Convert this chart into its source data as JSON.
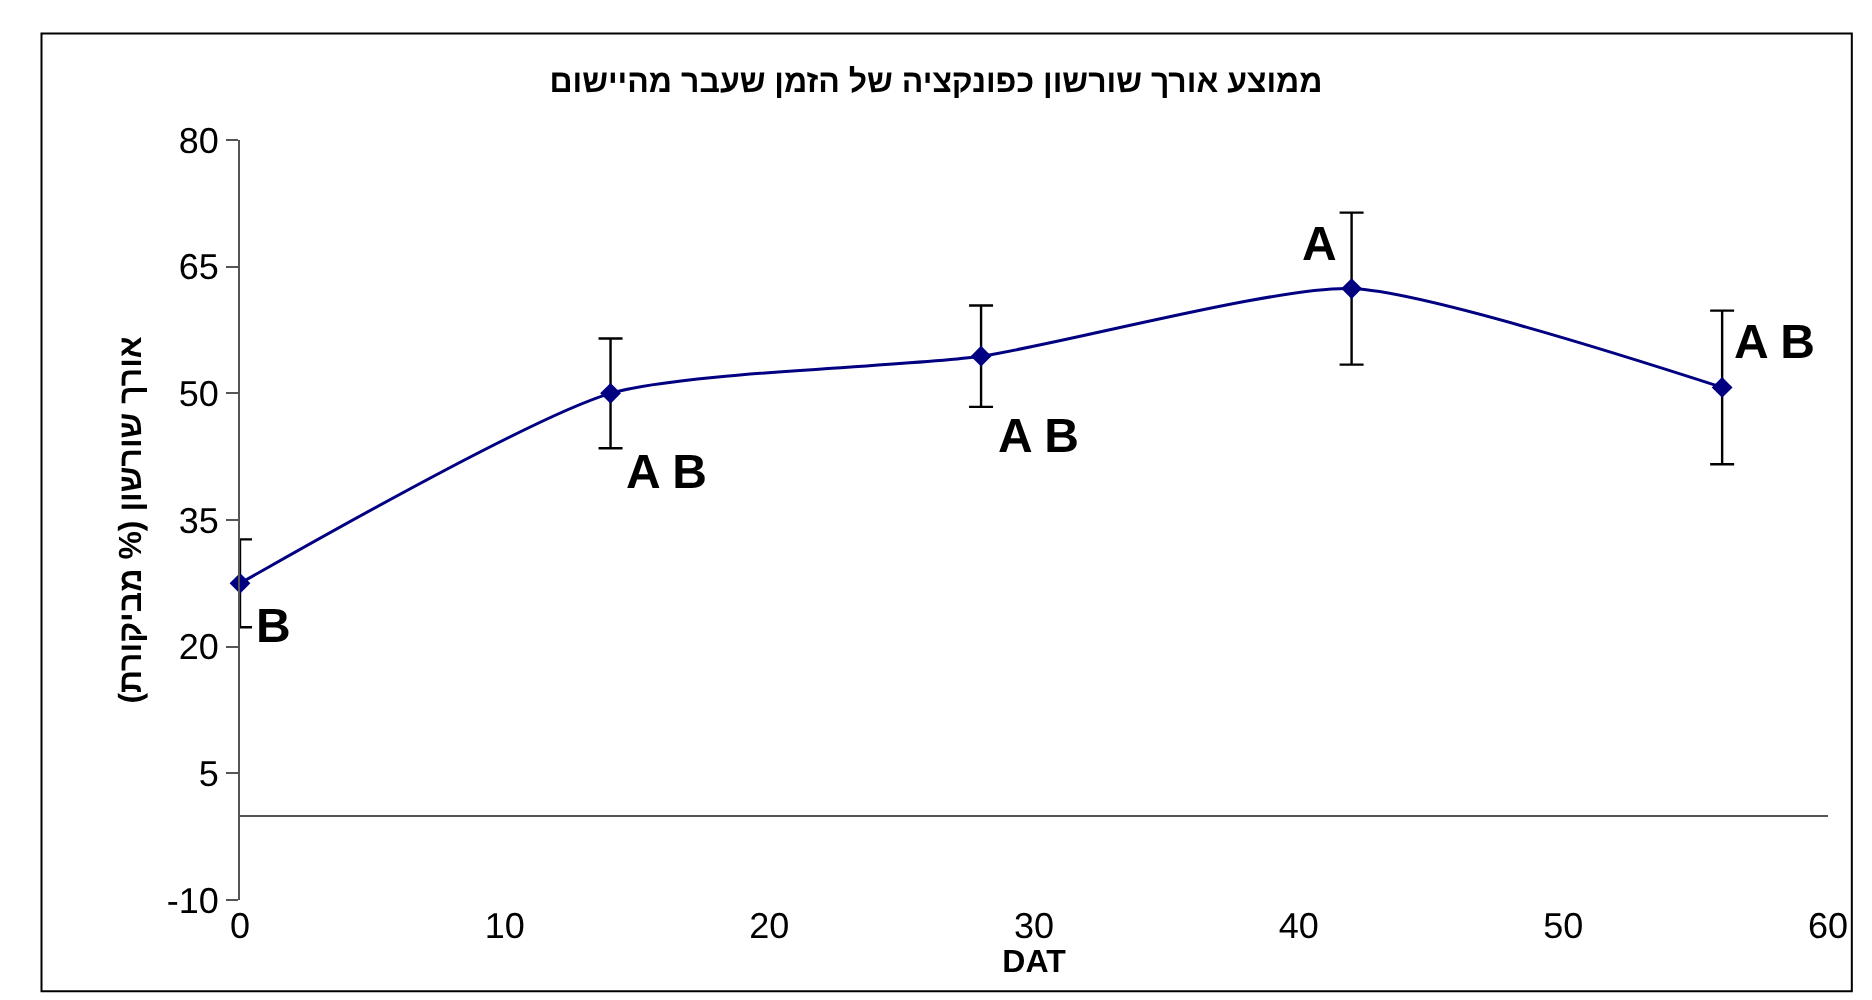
{
  "chart_data": {
    "type": "line",
    "title": "ממוצע אורך שורשון כפונקציה של הזמן שעבר מהיישום",
    "xlabel": "DAT",
    "ylabel": "אורך שורשון (% מביקורת)",
    "x": [
      0,
      14,
      28,
      42,
      56
    ],
    "series": [
      {
        "color": "#000080",
        "values": [
          27.5,
          50,
          54.4,
          62.4,
          50.7
        ],
        "errors": [
          5.2,
          6.5,
          6,
          9,
          9.1
        ]
      }
    ],
    "xlim": [
      0,
      60
    ],
    "xticks": [
      0,
      10,
      20,
      30,
      40,
      50,
      60
    ],
    "ylim": [
      -10,
      80
    ],
    "yticks": [
      -10,
      5,
      20,
      35,
      50,
      65,
      80
    ],
    "annotations": [
      {
        "text": "B",
        "x": 0,
        "y": 27.5
      },
      {
        "text": "A B",
        "x": 14,
        "y": 50
      },
      {
        "text": "A B",
        "x": 28,
        "y": 54.4
      },
      {
        "text": "A",
        "x": 42,
        "y": 62.4
      },
      {
        "text": "A B",
        "x": 56,
        "y": 50.7
      }
    ],
    "marker": "diamond",
    "line_style": "solid"
  }
}
